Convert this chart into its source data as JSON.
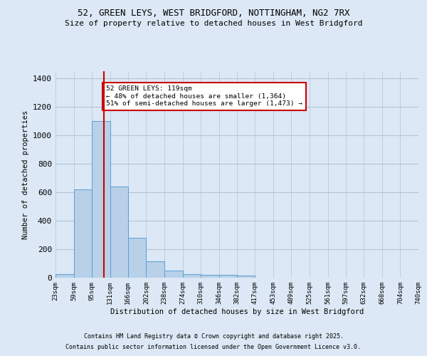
{
  "title_line1": "52, GREEN LEYS, WEST BRIDGFORD, NOTTINGHAM, NG2 7RX",
  "title_line2": "Size of property relative to detached houses in West Bridgford",
  "xlabel": "Distribution of detached houses by size in West Bridgford",
  "ylabel": "Number of detached properties",
  "bar_color": "#b8d0e8",
  "bar_edge_color": "#5a9fd4",
  "background_color": "#dce8f5",
  "grid_color": "#b0c4d8",
  "vline_x": 119,
  "vline_color": "#cc0000",
  "annotation_text": "52 GREEN LEYS: 119sqm\n← 48% of detached houses are smaller (1,364)\n51% of semi-detached houses are larger (1,473) →",
  "annotation_box_color": "white",
  "annotation_box_edge": "#cc0000",
  "bins": [
    23,
    59,
    95,
    131,
    166,
    202,
    238,
    274,
    310,
    346,
    382,
    417,
    453,
    489,
    525,
    561,
    597,
    632,
    668,
    704,
    740
  ],
  "bin_labels": [
    "23sqm",
    "59sqm",
    "95sqm",
    "131sqm",
    "166sqm",
    "202sqm",
    "238sqm",
    "274sqm",
    "310sqm",
    "346sqm",
    "382sqm",
    "417sqm",
    "453sqm",
    "489sqm",
    "525sqm",
    "561sqm",
    "597sqm",
    "632sqm",
    "668sqm",
    "704sqm",
    "740sqm"
  ],
  "bar_heights": [
    25,
    620,
    1100,
    640,
    280,
    115,
    50,
    25,
    20,
    20,
    13,
    0,
    0,
    0,
    0,
    0,
    0,
    0,
    0,
    0
  ],
  "ylim": [
    0,
    1450
  ],
  "yticks": [
    0,
    200,
    400,
    600,
    800,
    1000,
    1200,
    1400
  ],
  "footnote1": "Contains HM Land Registry data © Crown copyright and database right 2025.",
  "footnote2": "Contains public sector information licensed under the Open Government Licence v3.0."
}
